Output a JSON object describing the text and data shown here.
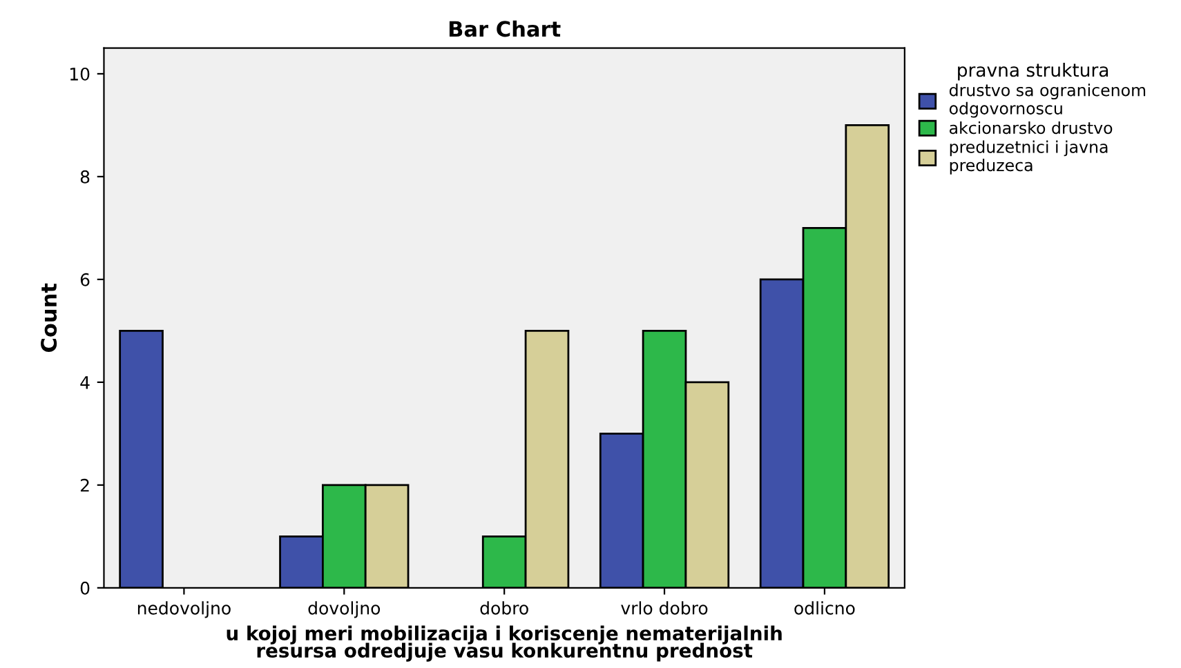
{
  "chart_data": {
    "type": "bar",
    "title": "Bar Chart",
    "xlabel": "u kojoj meri mobilizacija i koriscenje nematerijalnih\nresursa odredjuje vasu konkurentnu prednost",
    "ylabel": "Count",
    "legend_title": "pravna struktura",
    "categories": [
      "nedovoljno",
      "dovoljno",
      "dobro",
      "vrlo dobro",
      "odlicno"
    ],
    "series": [
      {
        "name": "drustvo sa ogranicenom\nodgovornoscu",
        "color": "#3f51a9",
        "values": [
          5,
          1,
          null,
          3,
          6
        ]
      },
      {
        "name": "akcionarsko drustvo",
        "color": "#2db84a",
        "values": [
          null,
          2,
          1,
          5,
          7
        ]
      },
      {
        "name": "preduzetnici i javna\npreduzeca",
        "color": "#d6cf98",
        "values": [
          null,
          2,
          5,
          4,
          9
        ]
      }
    ],
    "ylim": [
      0,
      10.5
    ],
    "yticks": [
      0,
      2,
      4,
      6,
      8,
      10
    ],
    "grid": false,
    "legend": "right"
  }
}
